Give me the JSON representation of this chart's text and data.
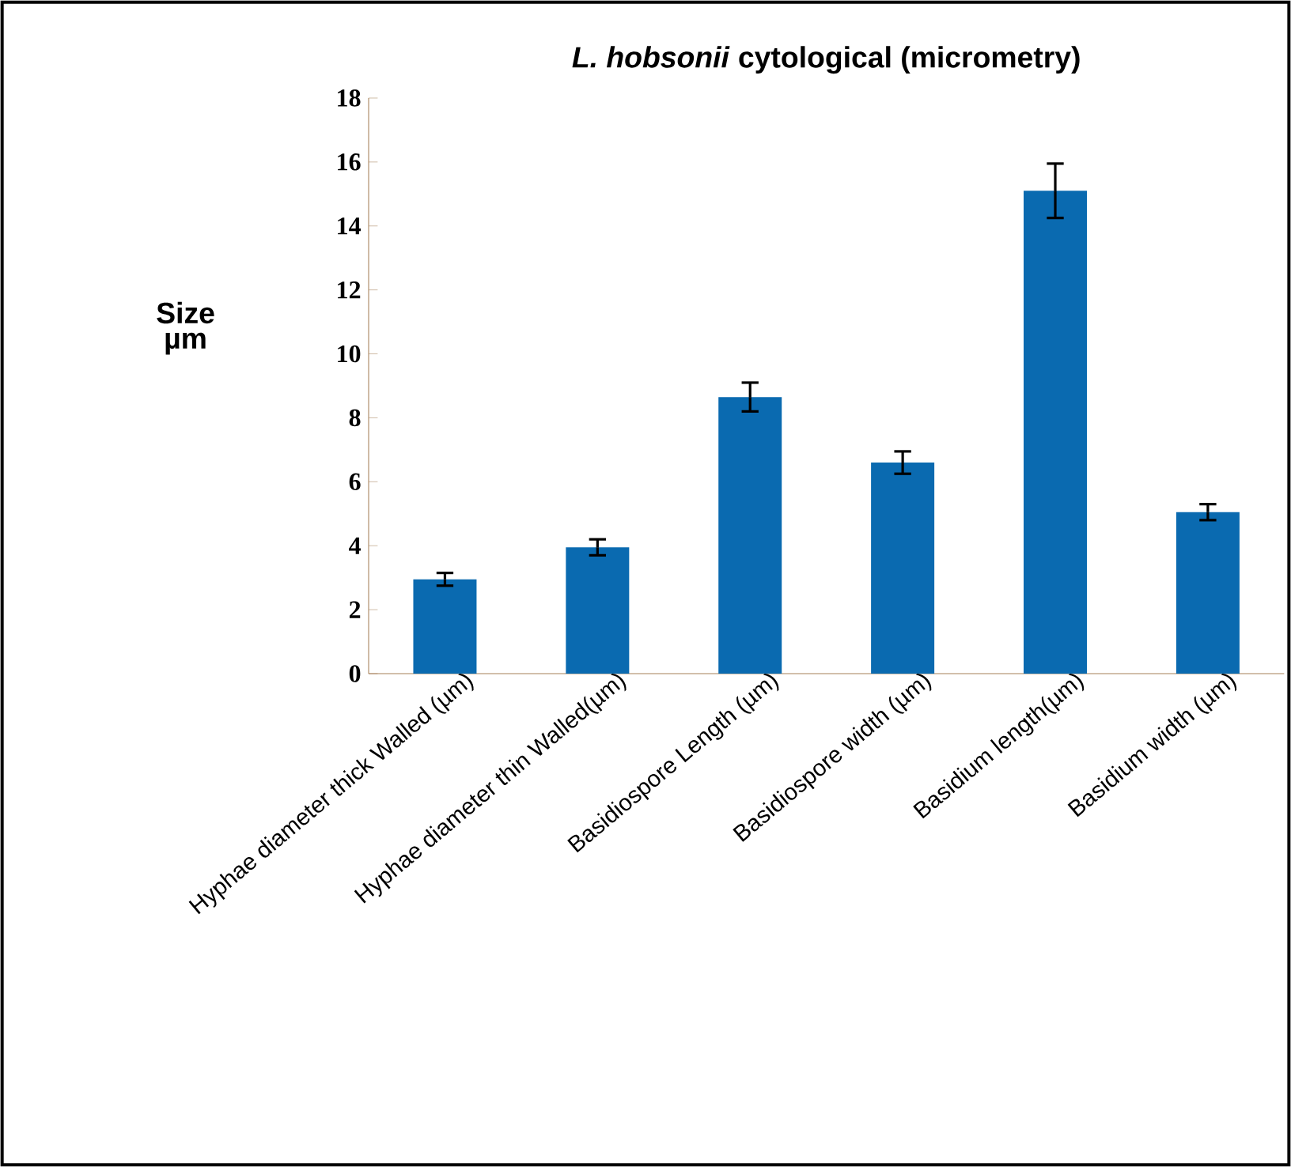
{
  "chart_data": {
    "type": "bar",
    "title": "*L. hobsonii* cytological (micrometry)",
    "ylabel": "Size µm",
    "categories": [
      "Hyphae diameter thick Walled (µm)",
      "Hyphae diameter thin Walled(µm)",
      "Basidiospore Length (µm)",
      "Basidiospore width (µm)",
      "Basidium length(µm)",
      "Basidium width (µm)"
    ],
    "values": [
      2.95,
      3.95,
      8.65,
      6.6,
      15.1,
      5.05
    ],
    "errors": [
      0.2,
      0.25,
      0.45,
      0.35,
      0.85,
      0.25
    ],
    "color": "#0a6ab0",
    "ylim": [
      0,
      18
    ],
    "yticks": [
      0,
      2,
      4,
      6,
      8,
      10,
      12,
      14,
      16,
      18
    ],
    "grid": false
  }
}
